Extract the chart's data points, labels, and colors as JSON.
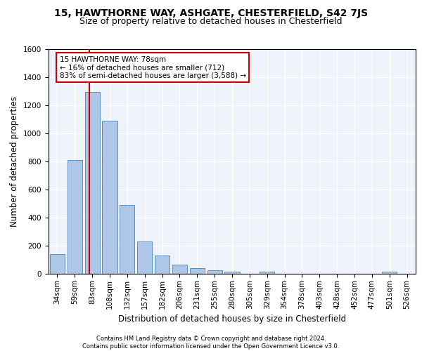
{
  "title_line1": "15, HAWTHORNE WAY, ASHGATE, CHESTERFIELD, S42 7JS",
  "title_line2": "Size of property relative to detached houses in Chesterfield",
  "xlabel": "Distribution of detached houses by size in Chesterfield",
  "ylabel": "Number of detached properties",
  "footer_line1": "Contains HM Land Registry data © Crown copyright and database right 2024.",
  "footer_line2": "Contains public sector information licensed under the Open Government Licence v3.0.",
  "bar_labels": [
    "34sqm",
    "59sqm",
    "83sqm",
    "108sqm",
    "132sqm",
    "157sqm",
    "182sqm",
    "206sqm",
    "231sqm",
    "255sqm",
    "280sqm",
    "305sqm",
    "329sqm",
    "354sqm",
    "378sqm",
    "403sqm",
    "428sqm",
    "452sqm",
    "477sqm",
    "501sqm",
    "526sqm"
  ],
  "bar_values": [
    140,
    810,
    1295,
    1090,
    490,
    232,
    130,
    65,
    40,
    27,
    15,
    0,
    14,
    0,
    0,
    0,
    0,
    0,
    0,
    14,
    0
  ],
  "bar_color": "#aec6e8",
  "bar_edge_color": "#5a8fc0",
  "background_color": "#eef3fb",
  "grid_color": "#ffffff",
  "annotation_text": "15 HAWTHORNE WAY: 78sqm\n← 16% of detached houses are smaller (712)\n83% of semi-detached houses are larger (3,588) →",
  "annotation_box_color": "#ffffff",
  "annotation_box_edge": "#cc0000",
  "vline_color": "#cc0000",
  "vline_x_index": 1.85,
  "ylim": [
    0,
    1600
  ],
  "yticks": [
    0,
    200,
    400,
    600,
    800,
    1000,
    1200,
    1400,
    1600
  ],
  "title_fontsize": 10,
  "subtitle_fontsize": 9,
  "axis_label_fontsize": 8.5,
  "tick_fontsize": 7.5,
  "footer_fontsize": 6.0
}
